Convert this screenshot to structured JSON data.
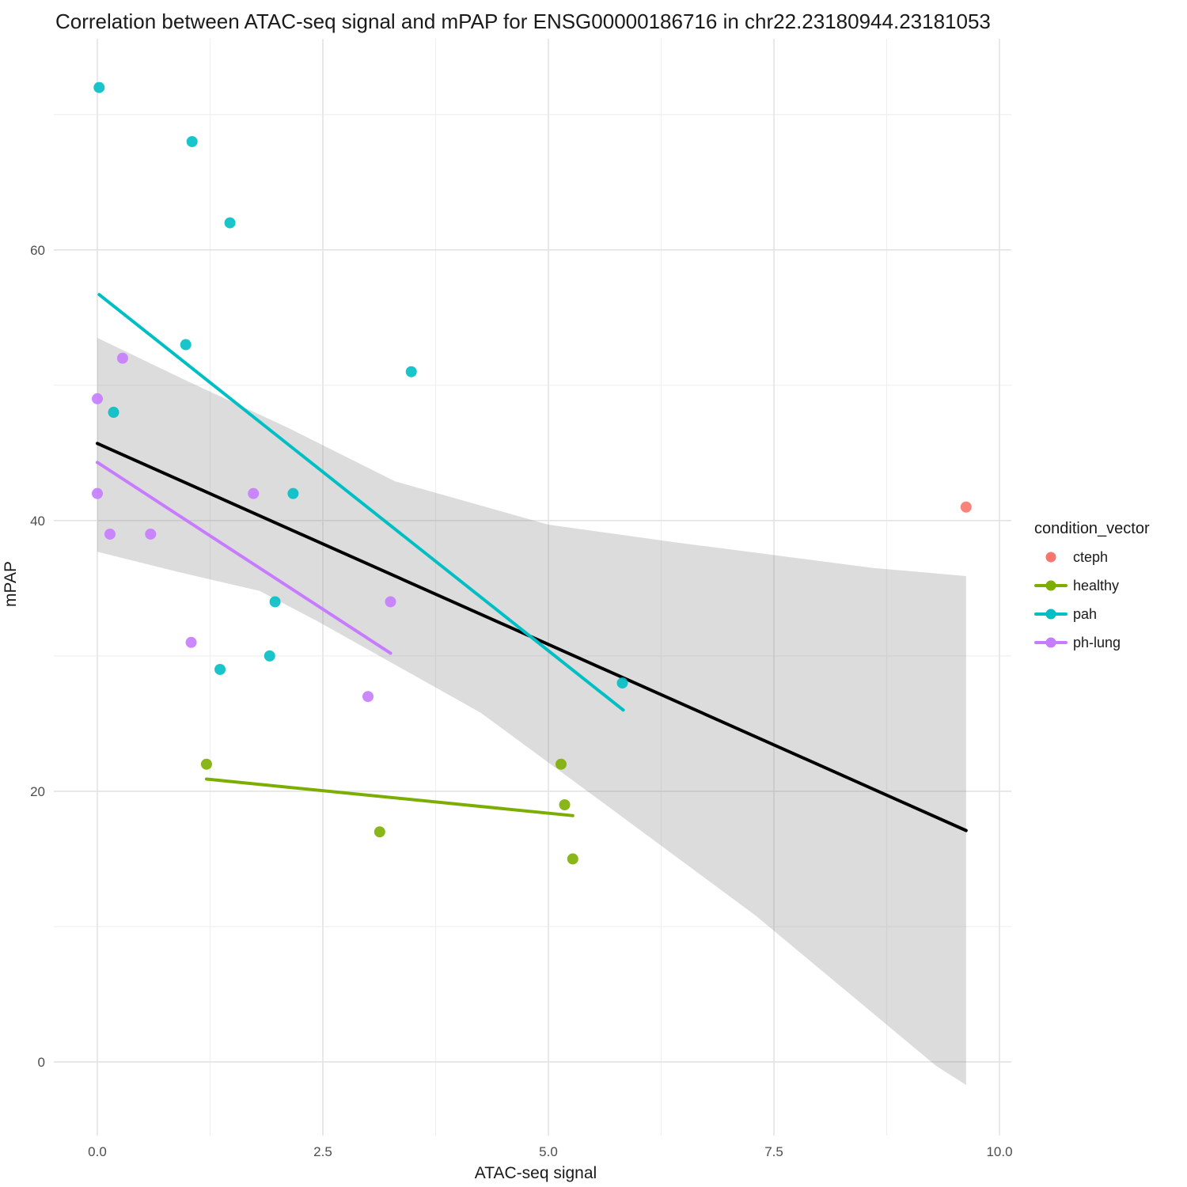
{
  "chart_data": {
    "type": "scatter",
    "title": "Correlation between ATAC-seq signal and mPAP for ENSG00000186716 in chr22.23180944.23181053",
    "x_axis": {
      "label": "ATAC-seq signal",
      "tick_values": [
        0,
        2.5,
        5,
        7.5,
        10
      ],
      "tick_labels": [
        "0.0",
        "2.5",
        "5.0",
        "7.5",
        "10.0"
      ],
      "minor_tick_values": [
        1.25,
        3.75,
        6.25,
        8.75
      ],
      "range": [
        -0.4825,
        10.1315
      ]
    },
    "y_axis": {
      "label": "mPAP",
      "tick_values": [
        0,
        20,
        40,
        60
      ],
      "tick_labels": [
        "0",
        "20",
        "40",
        "60"
      ],
      "minor_tick_values": [
        10,
        30,
        50,
        70
      ],
      "range": [
        -5.44,
        75.6
      ]
    },
    "legend": {
      "title": "condition_vector",
      "position": "right",
      "items": [
        {
          "label": "cteph",
          "color": "#F8766D",
          "marker": "point"
        },
        {
          "label": "healthy",
          "color": "#7CAE00",
          "marker": "point-line"
        },
        {
          "label": "pah",
          "color": "#00BFC4",
          "marker": "point-line"
        },
        {
          "label": "ph-lung",
          "color": "#C77CFF",
          "marker": "point-line"
        }
      ]
    },
    "series": [
      {
        "name": "cteph",
        "color": "#F8766D",
        "points": [
          [
            9.63,
            41
          ]
        ],
        "trend_line": null
      },
      {
        "name": "healthy",
        "color": "#7CAE00",
        "points": [
          [
            1.21,
            22
          ],
          [
            3.13,
            17
          ],
          [
            5.14,
            22
          ],
          [
            5.18,
            19
          ],
          [
            5.27,
            15
          ]
        ],
        "trend_line": {
          "start": [
            1.21,
            20.9
          ],
          "end": [
            5.27,
            18.2
          ]
        }
      },
      {
        "name": "pah",
        "color": "#00BFC4",
        "points": [
          [
            0.02,
            72
          ],
          [
            1.05,
            68
          ],
          [
            1.47,
            62
          ],
          [
            0.98,
            53
          ],
          [
            3.48,
            51
          ],
          [
            0.18,
            48
          ],
          [
            2.17,
            42
          ],
          [
            1.97,
            34
          ],
          [
            1.91,
            30
          ],
          [
            1.36,
            29
          ],
          [
            5.82,
            28
          ]
        ],
        "trend_line": {
          "start": [
            0.02,
            56.7
          ],
          "end": [
            5.83,
            26.0
          ]
        }
      },
      {
        "name": "ph-lung",
        "color": "#C77CFF",
        "points": [
          [
            0.28,
            52
          ],
          [
            0.0,
            49
          ],
          [
            0.0,
            42
          ],
          [
            1.73,
            42
          ],
          [
            0.14,
            39
          ],
          [
            0.59,
            39
          ],
          [
            1.04,
            31
          ],
          [
            3.25,
            34
          ],
          [
            3.0,
            27
          ]
        ],
        "trend_line": {
          "start": [
            0.0,
            44.3
          ],
          "end": [
            3.25,
            30.2
          ]
        }
      }
    ],
    "overall_trend": {
      "color": "#000000",
      "start": [
        0.0,
        45.7
      ],
      "end": [
        9.63,
        17.1
      ],
      "confidence_band": {
        "fill": "rgba(140,140,140,0.30)",
        "upper": [
          [
            0,
            53.5
          ],
          [
            1.0,
            50.3
          ],
          [
            2.1,
            46.9
          ],
          [
            3.3,
            42.9
          ],
          [
            5.0,
            39.7
          ],
          [
            6.4,
            38.4
          ],
          [
            8.6,
            36.5
          ],
          [
            9.63,
            35.9
          ]
        ],
        "lower": [
          [
            0,
            37.7
          ],
          [
            0.9,
            36.2
          ],
          [
            1.8,
            34.8
          ],
          [
            2.43,
            32.6
          ],
          [
            4.25,
            25.8
          ],
          [
            5.8,
            18.2
          ],
          [
            7.3,
            10.8
          ],
          [
            9.3,
            -0.3
          ],
          [
            9.63,
            -1.7
          ]
        ]
      }
    },
    "styles": {
      "background": "#FFFFFF",
      "grid_major_color": "#E3E3E3",
      "grid_minor_color": "#EFEFEF",
      "tick_label_color": "#4D4D4D",
      "text_color": "#1A1A1A"
    }
  }
}
